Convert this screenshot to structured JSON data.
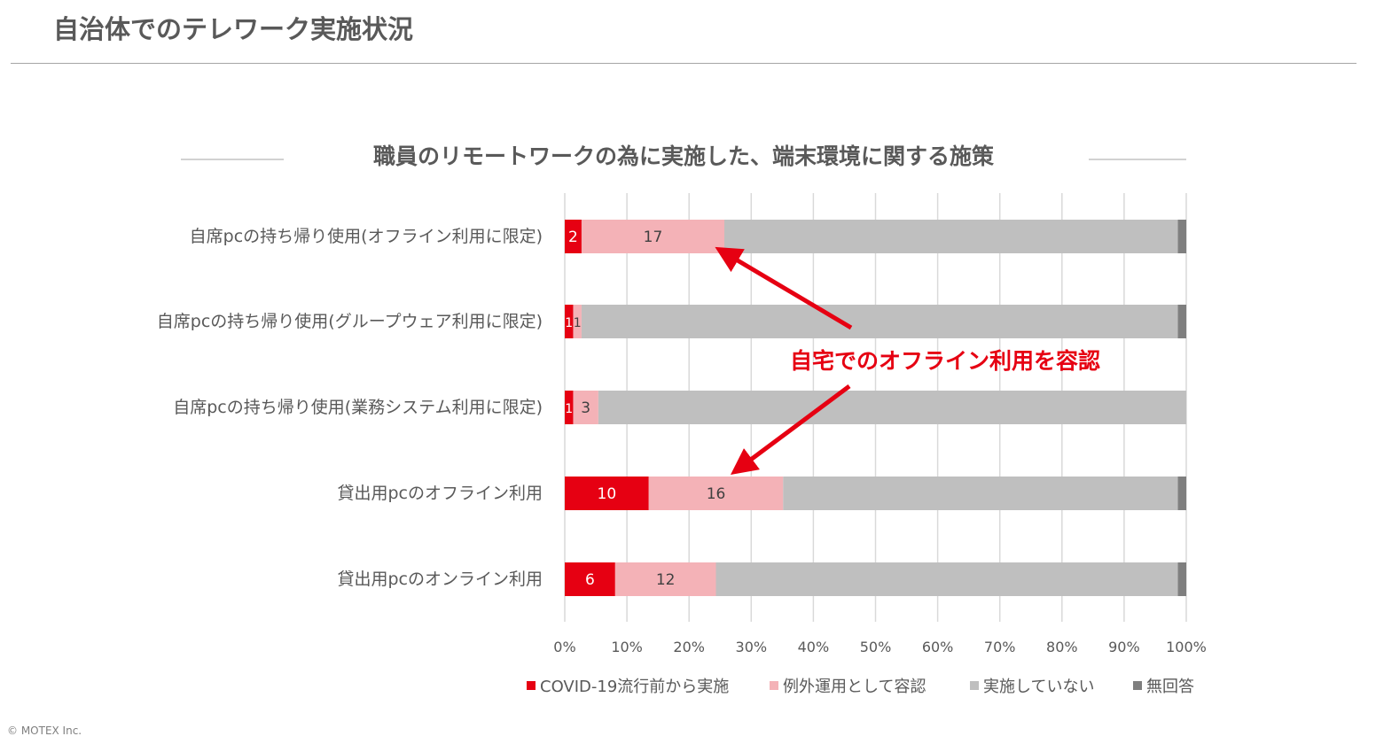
{
  "page": {
    "title": "自治体でのテレワーク実施状況",
    "copyright": "© MOTEX Inc."
  },
  "chart_data": {
    "type": "bar",
    "orientation": "horizontal",
    "stacking": "percent",
    "title": "職員のリモートワークの為に実施した、端末環境に関する施策",
    "categories": [
      "自席pcの持ち帰り使用(オフライン利用に限定)",
      "自席pcの持ち帰り使用(グループウェア利用に限定)",
      "自席pcの持ち帰り使用(業務システム利用に限定)",
      "貸出用pcのオフライン利用",
      "貸出用pcのオンライン利用"
    ],
    "series": [
      {
        "name": "COVID-19流行前から実施",
        "color": "#e60012",
        "values": [
          2,
          1,
          1,
          10,
          6
        ],
        "show_labels": true,
        "label_color": "#ffffff"
      },
      {
        "name": "例外運用として容認",
        "color": "#f4b2b7",
        "values": [
          17,
          1,
          3,
          16,
          12
        ],
        "show_labels": true,
        "label_color": "#404040"
      },
      {
        "name": "実施していない",
        "color": "#bfbfbf",
        "values": [
          54,
          71,
          70,
          47,
          55
        ],
        "show_labels": false
      },
      {
        "name": "無回答",
        "color": "#7f7f7f",
        "values": [
          1,
          1,
          0,
          1,
          1
        ],
        "show_labels": false
      }
    ],
    "xlim": [
      0,
      100
    ],
    "xticks": [
      "0%",
      "10%",
      "20%",
      "30%",
      "40%",
      "50%",
      "60%",
      "70%",
      "80%",
      "90%",
      "100%"
    ],
    "grid": true,
    "legend": "bottom",
    "annotation": {
      "text": "自宅でのオフライン利用を容認",
      "color": "#e60012",
      "targets": [
        "自席pcの持ち帰り使用(オフライン利用に限定)",
        "貸出用pcのオフライン利用"
      ]
    }
  }
}
